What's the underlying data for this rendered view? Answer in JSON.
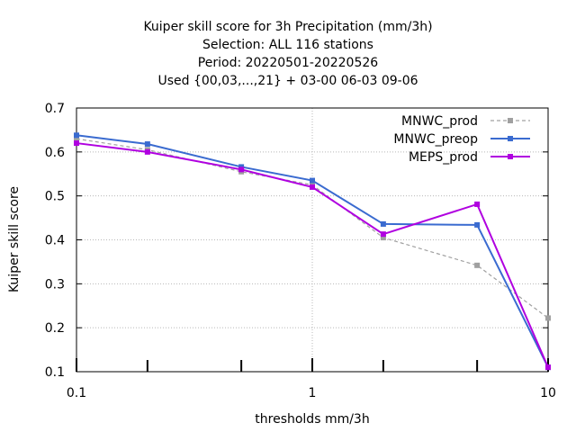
{
  "chart_data": {
    "type": "line",
    "title_lines": [
      "Kuiper skill score  for 3h Precipitation (mm/3h)",
      "Selection: ALL    116 stations",
      "Period: 20220501-20220526",
      "Used {00,03,...,21} + 03-00 06-03 09-06"
    ],
    "xlabel": "thresholds mm/3h",
    "ylabel": "Kuiper skill score",
    "x_scale": "log",
    "xlim": [
      0.1,
      10
    ],
    "ylim": [
      0.1,
      0.7
    ],
    "x_ticks": [
      0.1,
      1,
      10
    ],
    "x_tick_labels": [
      "0.1",
      "1",
      "10"
    ],
    "y_ticks": [
      0.1,
      0.2,
      0.3,
      0.4,
      0.5,
      0.6,
      0.7
    ],
    "y_tick_labels": [
      "0.1",
      "0.2",
      "0.3",
      "0.4",
      "0.5",
      "0.6",
      "0.7"
    ],
    "grid": true,
    "legend_position": "top-right",
    "x": [
      0.1,
      0.2,
      0.5,
      1,
      2,
      5,
      10
    ],
    "series": [
      {
        "name": "MNWC_prod",
        "color": "#a0a0a0",
        "dash": true,
        "values": [
          0.63,
          0.605,
          0.555,
          0.525,
          0.405,
          0.342,
          0.222
        ]
      },
      {
        "name": "MNWC_preop",
        "color": "#3a6bd0",
        "dash": false,
        "values": [
          0.638,
          0.618,
          0.566,
          0.535,
          0.436,
          0.434,
          0.11
        ]
      },
      {
        "name": "MEPS_prod",
        "color": "#b000e0",
        "dash": false,
        "values": [
          0.62,
          0.6,
          0.56,
          0.52,
          0.413,
          0.481,
          0.11
        ]
      }
    ]
  }
}
